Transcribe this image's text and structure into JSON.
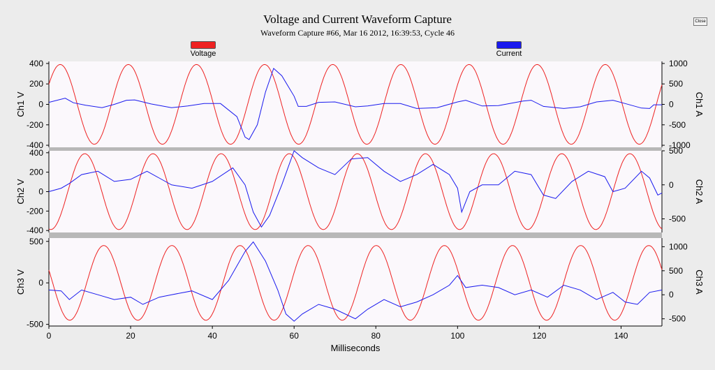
{
  "window": {
    "close_label": "Close"
  },
  "colors": {
    "voltage": "#ee2222",
    "current": "#1a1aee",
    "plot_bg": "#fbf8fc",
    "separator": "#b8b8b8",
    "page_bg": "#ececec"
  },
  "chart_data": {
    "type": "line",
    "title": "Voltage and Current Waveform Capture",
    "subtitle": "Waveform Capture #66, Mar 16 2012, 16:39:53,  Cycle 46",
    "xlabel": "Milliseconds",
    "xlim": [
      0,
      150
    ],
    "x_ticks": [
      "0",
      "20",
      "40",
      "60",
      "80",
      "100",
      "120",
      "140"
    ],
    "legend": [
      {
        "name": "Voltage",
        "color": "#ee2222",
        "position": "top-left"
      },
      {
        "name": "Current",
        "color": "#1a1aee",
        "position": "top-right"
      }
    ],
    "panels": [
      {
        "left_label": "Ch1 V",
        "right_label": "Ch1 A",
        "ylim_left": [
          -420,
          420
        ],
        "ylim_right": [
          -1050,
          1050
        ],
        "left_ticks": [
          "400",
          "200",
          "0",
          "-200",
          "-400"
        ],
        "right_ticks": [
          "1000",
          "500",
          "0",
          "-500",
          "-1000"
        ],
        "voltage": {
          "amplitude": 390,
          "period_ms": 16.67,
          "phase_deg": 30
        },
        "current": {
          "points": [
            [
              0,
              50
            ],
            [
              4,
              150
            ],
            [
              6,
              40
            ],
            [
              9,
              -20
            ],
            [
              13,
              -80
            ],
            [
              16,
              0
            ],
            [
              19,
              100
            ],
            [
              21,
              110
            ],
            [
              25,
              10
            ],
            [
              30,
              -80
            ],
            [
              34,
              -40
            ],
            [
              38,
              20
            ],
            [
              42,
              20
            ],
            [
              46,
              -300
            ],
            [
              48,
              -800
            ],
            [
              49,
              -860
            ],
            [
              51,
              -500
            ],
            [
              53,
              300
            ],
            [
              55,
              880
            ],
            [
              57,
              700
            ],
            [
              60,
              200
            ],
            [
              61,
              -50
            ],
            [
              63,
              -50
            ],
            [
              66,
              50
            ],
            [
              70,
              60
            ],
            [
              75,
              -60
            ],
            [
              78,
              -40
            ],
            [
              82,
              20
            ],
            [
              86,
              20
            ],
            [
              90,
              -100
            ],
            [
              95,
              -80
            ],
            [
              100,
              60
            ],
            [
              102,
              100
            ],
            [
              106,
              -40
            ],
            [
              110,
              -30
            ],
            [
              116,
              80
            ],
            [
              118,
              100
            ],
            [
              121,
              -50
            ],
            [
              126,
              -100
            ],
            [
              130,
              -60
            ],
            [
              134,
              60
            ],
            [
              138,
              100
            ],
            [
              141,
              20
            ],
            [
              145,
              -90
            ],
            [
              147,
              -100
            ],
            [
              148,
              -10
            ],
            [
              150,
              -10
            ]
          ]
        }
      },
      {
        "left_label": "Ch2 V",
        "right_label": "Ch2 A",
        "ylim_left": [
          -420,
          420
        ],
        "ylim_right": [
          -700,
          500
        ],
        "left_ticks": [
          "400",
          "200",
          "0",
          "-200",
          "-400"
        ],
        "right_ticks": [
          "500",
          "0",
          "-500"
        ],
        "voltage": {
          "amplitude": 390,
          "period_ms": 16.67,
          "phase_deg": -100
        },
        "current": {
          "points": [
            [
              0,
              -100
            ],
            [
              3,
              -50
            ],
            [
              5,
              20
            ],
            [
              8,
              150
            ],
            [
              12,
              200
            ],
            [
              16,
              50
            ],
            [
              20,
              80
            ],
            [
              24,
              200
            ],
            [
              27,
              100
            ],
            [
              30,
              0
            ],
            [
              35,
              -50
            ],
            [
              40,
              50
            ],
            [
              45,
              250
            ],
            [
              48,
              0
            ],
            [
              50,
              -400
            ],
            [
              52,
              -620
            ],
            [
              54,
              -450
            ],
            [
              57,
              0
            ],
            [
              60,
              500
            ],
            [
              62,
              400
            ],
            [
              66,
              250
            ],
            [
              70,
              150
            ],
            [
              74,
              380
            ],
            [
              78,
              400
            ],
            [
              82,
              200
            ],
            [
              86,
              50
            ],
            [
              90,
              150
            ],
            [
              94,
              300
            ],
            [
              98,
              150
            ],
            [
              100,
              -50
            ],
            [
              101,
              -400
            ],
            [
              103,
              -100
            ],
            [
              106,
              0
            ],
            [
              110,
              0
            ],
            [
              114,
              200
            ],
            [
              118,
              150
            ],
            [
              121,
              -150
            ],
            [
              124,
              -200
            ],
            [
              128,
              50
            ],
            [
              132,
              200
            ],
            [
              136,
              120
            ],
            [
              138,
              -100
            ],
            [
              141,
              -50
            ],
            [
              145,
              200
            ],
            [
              147,
              100
            ],
            [
              149,
              -150
            ],
            [
              150,
              -120
            ]
          ]
        }
      },
      {
        "left_label": "Ch3 V",
        "right_label": "Ch3 A",
        "ylim_left": [
          -520,
          540
        ],
        "ylim_right": [
          -650,
          1180
        ],
        "left_ticks": [
          "500",
          "0",
          "-500"
        ],
        "right_ticks": [
          "1000",
          "500",
          "0",
          "-500"
        ],
        "voltage": {
          "amplitude": 450,
          "period_ms": 16.67,
          "phase_deg": 160
        },
        "current": {
          "points": [
            [
              0,
              100
            ],
            [
              3,
              80
            ],
            [
              5,
              -100
            ],
            [
              8,
              100
            ],
            [
              12,
              0
            ],
            [
              16,
              -100
            ],
            [
              20,
              -50
            ],
            [
              23,
              -200
            ],
            [
              27,
              -50
            ],
            [
              30,
              0
            ],
            [
              35,
              80
            ],
            [
              40,
              -100
            ],
            [
              44,
              300
            ],
            [
              48,
              900
            ],
            [
              50,
              1100
            ],
            [
              53,
              700
            ],
            [
              56,
              100
            ],
            [
              58,
              -400
            ],
            [
              60,
              -550
            ],
            [
              62,
              -400
            ],
            [
              66,
              -200
            ],
            [
              70,
              -300
            ],
            [
              75,
              -500
            ],
            [
              78,
              -300
            ],
            [
              82,
              -100
            ],
            [
              86,
              -250
            ],
            [
              90,
              -150
            ],
            [
              94,
              0
            ],
            [
              98,
              200
            ],
            [
              100,
              400
            ],
            [
              102,
              150
            ],
            [
              106,
              200
            ],
            [
              110,
              150
            ],
            [
              114,
              0
            ],
            [
              118,
              100
            ],
            [
              122,
              -50
            ],
            [
              126,
              200
            ],
            [
              130,
              100
            ],
            [
              134,
              -100
            ],
            [
              138,
              50
            ],
            [
              141,
              -150
            ],
            [
              144,
              -200
            ],
            [
              147,
              50
            ],
            [
              150,
              100
            ]
          ]
        }
      }
    ]
  }
}
